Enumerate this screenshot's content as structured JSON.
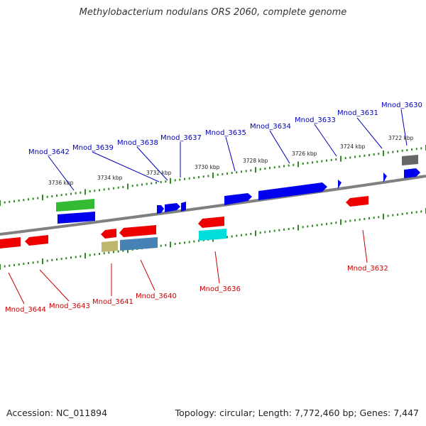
{
  "title": "Methylobacterium nodulans ORS 2060, complete genome",
  "footer": {
    "accession": "Accession: NC_011894",
    "summary": "Topology: circular; Length: 7,772,460 bp; Genes: 7,447"
  },
  "colors": {
    "backbone": "#808080",
    "tick": "#2e8b22",
    "label_top": "#0000bb",
    "label_bottom": "#cc0000",
    "gene_blue": "#0000ee",
    "gene_red": "#ee0000",
    "gene_green": "#33bb33",
    "gene_gray": "#666666",
    "gene_cyan": "#00dddd",
    "gene_khaki": "#bdb76b",
    "gene_steel": "#4682b4"
  },
  "kbp_labels": [
    "3722 kbp",
    "3724 kbp",
    "3726 kbp",
    "3728 kbp",
    "3730 kbp",
    "3732 kbp",
    "3734 kbp",
    "3736 kbp"
  ],
  "genes_top": [
    "Mnod_3630",
    "Mnod_3631",
    "Mnod_3633",
    "Mnod_3634",
    "Mnod_3635",
    "Mnod_3637",
    "Mnod_3638",
    "Mnod_3639",
    "Mnod_3642"
  ],
  "genes_bottom": [
    "Mnod_3632",
    "Mnod_3636",
    "Mnod_3640",
    "Mnod_3641",
    "Mnod_3643",
    "Mnod_3644"
  ]
}
